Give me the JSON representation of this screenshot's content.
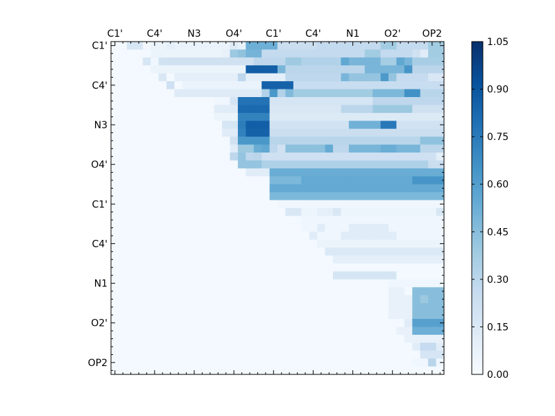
{
  "chart_data": {
    "type": "heatmap",
    "title": "",
    "xlabel": "",
    "ylabel": "",
    "tick_labels": [
      "C1'",
      "C4'",
      "N3",
      "O4'",
      "C1'",
      "C4'",
      "N1",
      "O2'",
      "OP2"
    ],
    "tick_positions": [
      0,
      5,
      10,
      15,
      20,
      25,
      30,
      35,
      40
    ],
    "n": 42,
    "vmin": 0.0,
    "vmax": 1.05,
    "colorbar_ticks": [
      "0.00",
      "0.15",
      "0.30",
      "0.45",
      "0.60",
      "0.75",
      "0.90",
      "1.05"
    ],
    "colormap": [
      "#f7fbff",
      "#deebf7",
      "#c6dbef",
      "#9ecae1",
      "#6baed6",
      "#4292c6",
      "#2171b5",
      "#08519c",
      "#08306b"
    ],
    "background_value": 0.02,
    "rows": [
      {
        "i": 0,
        "from": 2,
        "values": [
          0.17,
          0.17,
          0.03,
          0.06,
          0.06,
          0.1,
          0.07,
          0.07,
          0.07,
          0.07,
          0.07,
          0.07,
          0.07,
          0.13,
          0.08,
          0.52,
          0.52,
          0.52,
          0.52,
          0.24,
          0.24,
          0.24,
          0.24,
          0.24,
          0.27,
          0.27,
          0.27,
          0.27,
          0.27,
          0.27,
          0.27,
          0.27,
          0.38,
          0.38,
          0.27,
          0.27,
          0.27,
          0.27,
          0.38,
          0.38
        ]
      },
      {
        "i": 1,
        "from": 5,
        "values": [
          0.06,
          0.06,
          0.06,
          0.06,
          0.06,
          0.06,
          0.06,
          0.06,
          0.06,
          0.08,
          0.4,
          0.43,
          0.5,
          0.5,
          0.27,
          0.27,
          0.27,
          0.27,
          0.27,
          0.27,
          0.27,
          0.27,
          0.27,
          0.27,
          0.27,
          0.27,
          0.27,
          0.38,
          0.38,
          0.27,
          0.27,
          0.27,
          0.27,
          0.21,
          0.12,
          0.38,
          0.38
        ]
      },
      {
        "i": 2,
        "from": 4,
        "values": [
          0.17,
          0.04,
          0.2,
          0.21,
          0.21,
          0.21,
          0.21,
          0.21,
          0.21,
          0.21,
          0.21,
          0.21,
          0.21,
          0.21,
          0.29,
          0.29,
          0.29,
          0.29,
          0.39,
          0.39,
          0.33,
          0.33,
          0.33,
          0.33,
          0.33,
          0.56,
          0.49,
          0.49,
          0.49,
          0.49,
          0.37,
          0.37,
          0.56,
          0.49,
          0.36,
          0.36,
          0.36,
          0.36,
          0.24,
          0.12
        ]
      },
      {
        "i": 3,
        "from": 5,
        "values": [
          0.06,
          0.06,
          0.06,
          0.06,
          0.06,
          0.06,
          0.06,
          0.06,
          0.06,
          0.06,
          0.06,
          0.06,
          0.86,
          0.86,
          0.86,
          0.86,
          0.49,
          0.3,
          0.3,
          0.3,
          0.3,
          0.3,
          0.3,
          0.3,
          0.3,
          0.3,
          0.3,
          0.49,
          0.49,
          0.49,
          0.49,
          0.49,
          0.64,
          0.3,
          0.3,
          0.3,
          0.3,
          0.15,
          0.15,
          0.38
        ]
      },
      {
        "i": 4,
        "from": 6,
        "values": [
          0.16,
          0.02,
          0.1,
          0.1,
          0.1,
          0.1,
          0.1,
          0.1,
          0.1,
          0.1,
          0.29,
          0.1,
          0.1,
          0.1,
          0.1,
          0.1,
          0.29,
          0.29,
          0.29,
          0.29,
          0.29,
          0.29,
          0.29,
          0.49,
          0.42,
          0.42,
          0.42,
          0.42,
          0.62,
          0.42,
          0.26,
          0.26,
          0.26,
          0.26,
          0.16,
          0.16,
          0.16
        ]
      },
      {
        "i": 5,
        "from": 7,
        "values": [
          0.22,
          0.02,
          0.07,
          0.07,
          0.07,
          0.07,
          0.07,
          0.07,
          0.07,
          0.07,
          0.07,
          0.07,
          0.85,
          0.85,
          0.85,
          0.85,
          0.25,
          0.25,
          0.25,
          0.25,
          0.25,
          0.25,
          0.25,
          0.25,
          0.25,
          0.25,
          0.25,
          0.25,
          0.25,
          0.25,
          0.25,
          0.25,
          0.25,
          0.25,
          0.25,
          0.42,
          0.42
        ]
      },
      {
        "i": 6,
        "from": 8,
        "values": [
          0.13,
          0.13,
          0.13,
          0.13,
          0.13,
          0.13,
          0.13,
          0.13,
          0.13,
          0.13,
          0.13,
          0.33,
          0.63,
          0.33,
          0.47,
          0.38,
          0.38,
          0.38,
          0.38,
          0.38,
          0.38,
          0.38,
          0.38,
          0.38,
          0.38,
          0.48,
          0.48,
          0.48,
          0.48,
          0.66,
          0.66,
          0.31,
          0.31,
          0.31,
          0.31,
          0.31,
          0.31,
          0.31
        ]
      },
      {
        "i": 7,
        "from": 13,
        "values": [
          0.04,
          0.04,
          0.18,
          0.78,
          0.78,
          0.78,
          0.78,
          0.18,
          0.18,
          0.18,
          0.18,
          0.18,
          0.18,
          0.18,
          0.18,
          0.18,
          0.18,
          0.18,
          0.18,
          0.18,
          0.29,
          0.29,
          0.29,
          0.29,
          0.29,
          0.29,
          0.29,
          0.29,
          0.29,
          0.29,
          0.29,
          0.29,
          0.29
        ]
      },
      {
        "i": 8,
        "from": 13,
        "values": [
          0.12,
          0.12,
          0.12,
          0.82,
          0.82,
          0.82,
          0.82,
          0.16,
          0.16,
          0.16,
          0.16,
          0.16,
          0.16,
          0.16,
          0.16,
          0.16,
          0.3,
          0.3,
          0.3,
          0.3,
          0.4,
          0.4,
          0.4,
          0.4,
          0.4,
          0.21,
          0.21,
          0.21,
          0.21,
          0.21,
          0.21,
          0.21,
          0.21
        ]
      },
      {
        "i": 9,
        "from": 13,
        "values": [
          0.06,
          0.06,
          0.06,
          0.72,
          0.72,
          0.72,
          0.72,
          0.14,
          0.14,
          0.14,
          0.14,
          0.14,
          0.14,
          0.14,
          0.14,
          0.14,
          0.14,
          0.14,
          0.14,
          0.14,
          0.14,
          0.14,
          0.14,
          0.14,
          0.14,
          0.14,
          0.14,
          0.14,
          0.14,
          0.14,
          0.14,
          0.14,
          0.14
        ]
      },
      {
        "i": 10,
        "from": 14,
        "values": [
          0.17,
          0.17,
          0.74,
          0.86,
          0.86,
          0.86,
          0.2,
          0.2,
          0.2,
          0.2,
          0.2,
          0.2,
          0.2,
          0.2,
          0.2,
          0.2,
          0.51,
          0.51,
          0.51,
          0.51,
          0.76,
          0.76,
          0.2,
          0.2,
          0.2,
          0.2,
          0.2,
          0.2,
          0.2,
          0.2,
          0.2,
          0.2
        ]
      },
      {
        "i": 11,
        "from": 14,
        "values": [
          0.12,
          0.12,
          0.72,
          0.85,
          0.85,
          0.85,
          0.24,
          0.24,
          0.24,
          0.24,
          0.24,
          0.24,
          0.24,
          0.24,
          0.24,
          0.24,
          0.24,
          0.24,
          0.24,
          0.24,
          0.24,
          0.24,
          0.24,
          0.24,
          0.24,
          0.24,
          0.24,
          0.24,
          0.24,
          0.24,
          0.47,
          0.47
        ]
      },
      {
        "i": 12,
        "from": 15,
        "values": [
          0.21,
          0.63,
          0.63,
          0.63,
          0.63,
          0.31,
          0.31,
          0.31,
          0.31,
          0.31,
          0.31,
          0.31,
          0.31,
          0.31,
          0.31,
          0.31,
          0.31,
          0.31,
          0.31,
          0.31,
          0.31,
          0.31,
          0.31,
          0.31,
          0.43,
          0.43,
          0.43,
          0.43,
          0.63,
          0.63,
          0.43
        ]
      },
      {
        "i": 13,
        "from": 14,
        "values": [
          0.02,
          0.12,
          0.4,
          0.4,
          0.53,
          0.56,
          0.29,
          0.21,
          0.44,
          0.44,
          0.44,
          0.44,
          0.44,
          0.54,
          0.29,
          0.29,
          0.49,
          0.49,
          0.49,
          0.49,
          0.53,
          0.53,
          0.49,
          0.49,
          0.49,
          0.3,
          0.3,
          0.3,
          0.3,
          0.3,
          0.3,
          0.72,
          0.3
        ]
      },
      {
        "i": 14,
        "from": 15,
        "values": [
          0.29,
          0.42,
          0.29,
          0.3,
          0.22,
          0.22,
          0.22,
          0.22,
          0.22,
          0.22,
          0.22,
          0.22,
          0.22,
          0.22,
          0.22,
          0.22,
          0.22,
          0.22,
          0.22,
          0.22,
          0.22,
          0.22,
          0.22,
          0.22,
          0.22,
          0.22,
          0.11,
          0.11,
          0.11,
          0.11,
          0.11,
          0.11
        ]
      },
      {
        "i": 15,
        "from": 16,
        "values": [
          0.42,
          0.42,
          0.42,
          0.34,
          0.34,
          0.34,
          0.34,
          0.34,
          0.34,
          0.34,
          0.34,
          0.34,
          0.34,
          0.34,
          0.34,
          0.34,
          0.34,
          0.34,
          0.34,
          0.34,
          0.34,
          0.34,
          0.34,
          0.34,
          0.24,
          0.24,
          0.24,
          0.24,
          0.24,
          0.24
        ]
      },
      {
        "i": 16,
        "from": 17,
        "values": [
          0.12,
          0.12,
          0.12,
          0.53,
          0.53,
          0.53,
          0.53,
          0.53,
          0.53,
          0.53,
          0.53,
          0.53,
          0.53,
          0.53,
          0.53,
          0.53,
          0.53,
          0.53,
          0.53,
          0.53,
          0.53,
          0.53,
          0.53,
          0.53,
          0.53,
          0.53,
          0.53,
          0.53,
          0.53
        ]
      },
      {
        "i": 17,
        "from": 19,
        "values": [
          0.02,
          0.48,
          0.48,
          0.48,
          0.48,
          0.55,
          0.55,
          0.55,
          0.55,
          0.55,
          0.55,
          0.55,
          0.55,
          0.55,
          0.55,
          0.55,
          0.55,
          0.55,
          0.55,
          0.64,
          0.64,
          0.64,
          0.64,
          0.64,
          0.91,
          0.91,
          0.64
        ]
      },
      {
        "i": 18,
        "from": 20,
        "values": [
          0.55,
          0.55,
          0.55,
          0.55,
          0.55,
          0.55,
          0.55,
          0.55,
          0.55,
          0.55,
          0.55,
          0.55,
          0.55,
          0.55,
          0.55,
          0.55,
          0.55,
          0.55,
          0.55,
          0.55,
          0.55,
          0.55,
          0.55,
          0.83,
          0.83,
          0.55
        ]
      },
      {
        "i": 19,
        "from": 20,
        "values": [
          0.48,
          0.48,
          0.48,
          0.48,
          0.48,
          0.48,
          0.48,
          0.48,
          0.48,
          0.48,
          0.48,
          0.48,
          0.48,
          0.48,
          0.48,
          0.48,
          0.48,
          0.48,
          0.48,
          0.48,
          0.48,
          0.48,
          0.48,
          0.8,
          0.8,
          0.48
        ]
      },
      {
        "i": 20,
        "from": 21,
        "values": [
          0.04,
          0.04,
          0.04,
          0.04,
          0.04,
          0.04,
          0.04,
          0.04,
          0.04,
          0.04,
          0.04,
          0.04,
          0.04,
          0.04,
          0.04,
          0.04,
          0.04,
          0.04,
          0.04,
          0.04,
          0.04,
          0.04,
          0.04,
          0.04,
          0.04
        ]
      },
      {
        "i": 21,
        "from": 22,
        "values": [
          0.16,
          0.16,
          0.05,
          0.05,
          0.1,
          0.1,
          0.16,
          0.05,
          0.05,
          0.05,
          0.05,
          0.05,
          0.05,
          0.05,
          0.05,
          0.05,
          0.05,
          0.05,
          0.05,
          0.16,
          0.16,
          0.05,
          0.05,
          0.28,
          0.28
        ]
      },
      {
        "i": 22,
        "from": 24,
        "values": [
          0.04,
          0.04,
          0.04,
          0.04,
          0.04,
          0.04,
          0.04,
          0.04,
          0.04,
          0.04,
          0.04,
          0.04,
          0.04,
          0.04,
          0.04,
          0.04,
          0.04,
          0.04,
          0.04,
          0.04,
          0.04,
          0.04
        ]
      },
      {
        "i": 23,
        "from": 24,
        "values": [
          0.04,
          0.04,
          0.12,
          0.04,
          0.04,
          0.04,
          0.12,
          0.12,
          0.12,
          0.12,
          0.12,
          0.04,
          0.04,
          0.04,
          0.04,
          0.04,
          0.04,
          0.04,
          0.04,
          0.25,
          0.25,
          0.04
        ]
      },
      {
        "i": 24,
        "from": 25,
        "values": [
          0.12,
          0.04,
          0.04,
          0.04,
          0.12,
          0.12,
          0.12,
          0.12,
          0.12,
          0.12,
          0.12,
          0.04,
          0.04,
          0.04,
          0.04,
          0.04,
          0.04,
          0.04,
          0.25,
          0.25,
          0.04
        ]
      },
      {
        "i": 25,
        "from": 26,
        "values": [
          0.06,
          0.06,
          0.06,
          0.06,
          0.06,
          0.06,
          0.06,
          0.06,
          0.06,
          0.06,
          0.06,
          0.06,
          0.06,
          0.06,
          0.06,
          0.06,
          0.12,
          0.12,
          0.12,
          0.12
        ]
      },
      {
        "i": 26,
        "from": 26,
        "values": [
          0.02,
          0.15,
          0.15,
          0.15,
          0.15,
          0.15,
          0.15,
          0.15,
          0.15,
          0.15,
          0.15,
          0.15,
          0.15,
          0.15,
          0.15,
          0.15,
          0.15,
          0.25,
          0.25,
          0.25,
          0.25
        ]
      },
      {
        "i": 27,
        "from": 28,
        "values": [
          0.1,
          0.1,
          0.1,
          0.1,
          0.1,
          0.1,
          0.1,
          0.1,
          0.1,
          0.1,
          0.1,
          0.1,
          0.1,
          0.1,
          0.1,
          0.45,
          0.45,
          0.45,
          0.35
        ]
      },
      {
        "i": 28,
        "from": 28,
        "values": [
          0.02,
          0.02,
          0.02,
          0.02,
          0.02,
          0.02,
          0.02,
          0.02,
          0.02,
          0.02,
          0.02,
          0.02,
          0.02,
          0.02,
          0.02,
          0.02,
          0.02,
          0.02,
          0.02
        ]
      },
      {
        "i": 29,
        "from": 28,
        "values": [
          0.18,
          0.18,
          0.18,
          0.18,
          0.18,
          0.18,
          0.18,
          0.18,
          0.02,
          0.02,
          0.02,
          0.02,
          0.02,
          0.02,
          0.45,
          0.45,
          0.45,
          0.45,
          0.45
        ]
      },
      {
        "i": 30,
        "from": 35,
        "values": [
          0.04,
          0.04,
          0.04,
          0.04,
          0.04,
          0.04,
          0.04
        ]
      },
      {
        "i": 31,
        "from": 34,
        "values": [
          0.02,
          0.08,
          0.08,
          0.02,
          0.45,
          0.45,
          0.45,
          0.45
        ]
      },
      {
        "i": 32,
        "from": 35,
        "values": [
          0.08,
          0.08,
          0.08,
          0.45,
          0.4,
          0.45,
          0.45
        ]
      },
      {
        "i": 33,
        "from": 35,
        "values": [
          0.08,
          0.08,
          0.08,
          0.45,
          0.45,
          0.45,
          0.45
        ]
      },
      {
        "i": 34,
        "from": 35,
        "values": [
          0.08,
          0.08,
          0.08,
          0.45,
          0.45,
          0.45,
          0.45
        ]
      },
      {
        "i": 35,
        "from": 35,
        "values": [
          0.02,
          0.02,
          0.12,
          0.59,
          0.59,
          0.59,
          0.59
        ]
      },
      {
        "i": 36,
        "from": 36,
        "values": [
          0.08,
          0.08,
          0.52,
          0.52,
          0.52,
          0.52
        ]
      },
      {
        "i": 37,
        "from": 37,
        "values": [
          0.08,
          0.08,
          0.08,
          0.08,
          0.08
        ]
      },
      {
        "i": 38,
        "from": 38,
        "values": [
          0.12,
          0.26,
          0.26,
          0.12
        ]
      },
      {
        "i": 39,
        "from": 38,
        "values": [
          0.02,
          0.18,
          0.18,
          0.18
        ]
      },
      {
        "i": 40,
        "from": 38,
        "values": [
          0.04,
          0.04,
          0.31,
          0.04
        ]
      },
      {
        "i": 41,
        "from": 39,
        "values": [
          0.02,
          0.02,
          0.02
        ]
      }
    ]
  }
}
